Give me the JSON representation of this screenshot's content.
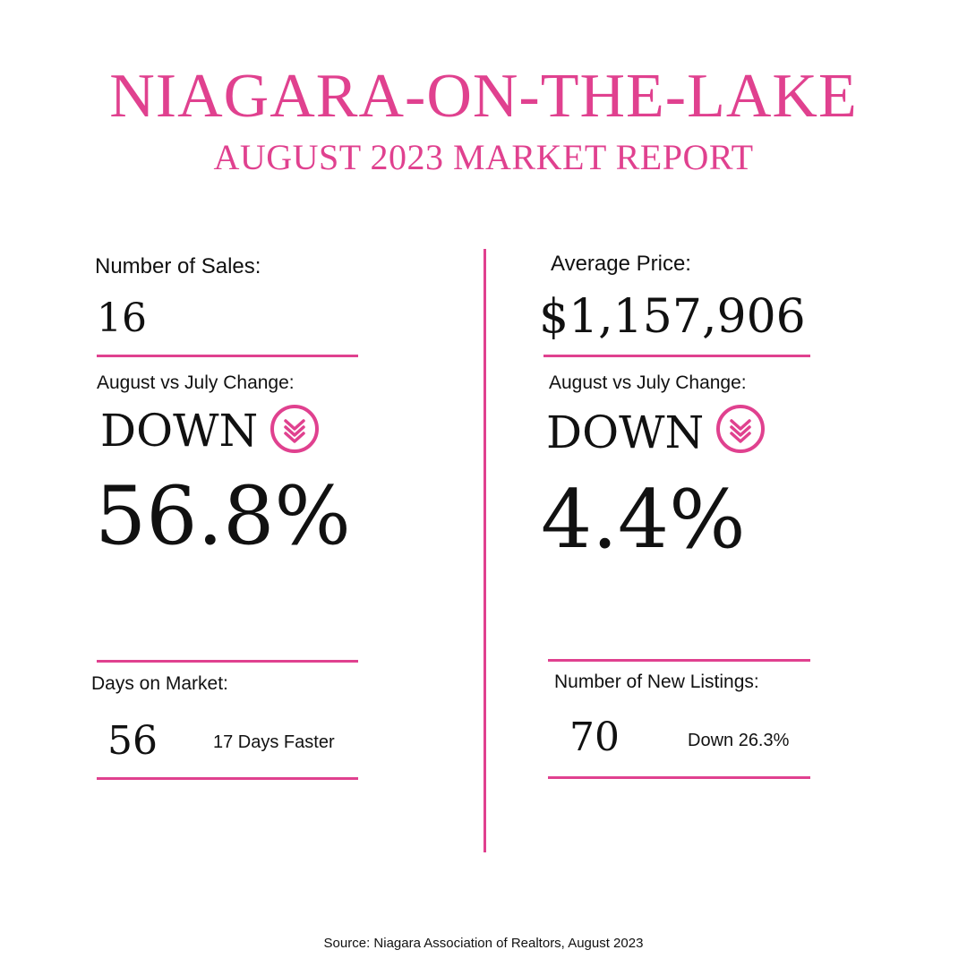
{
  "header": {
    "title": "NIAGARA-ON-THE-LAKE",
    "subtitle": "AUGUST 2023 MARKET REPORT"
  },
  "left": {
    "sales_label": "Number of Sales:",
    "sales_value": "16",
    "change_label": "August vs July Change:",
    "change_direction": "DOWN",
    "change_value": "56.8%",
    "dom_label": "Days on Market:",
    "dom_value": "56",
    "dom_note": "17 Days Faster"
  },
  "right": {
    "price_label": "Average Price:",
    "price_value": "$1,157,906",
    "change_label": "August vs July Change:",
    "change_direction": "DOWN",
    "change_value": "4.4%",
    "listings_label": "Number of New Listings:",
    "listings_value": "70",
    "listings_note": "Down 26.3%"
  },
  "footer": {
    "source": "Source: Niagara Association of Realtors, August 2023"
  },
  "colors": {
    "accent": "#e0418f",
    "text": "#111111",
    "background": "#ffffff"
  },
  "icons": {
    "change_icon": "double-chevron-down-circle-icon"
  }
}
